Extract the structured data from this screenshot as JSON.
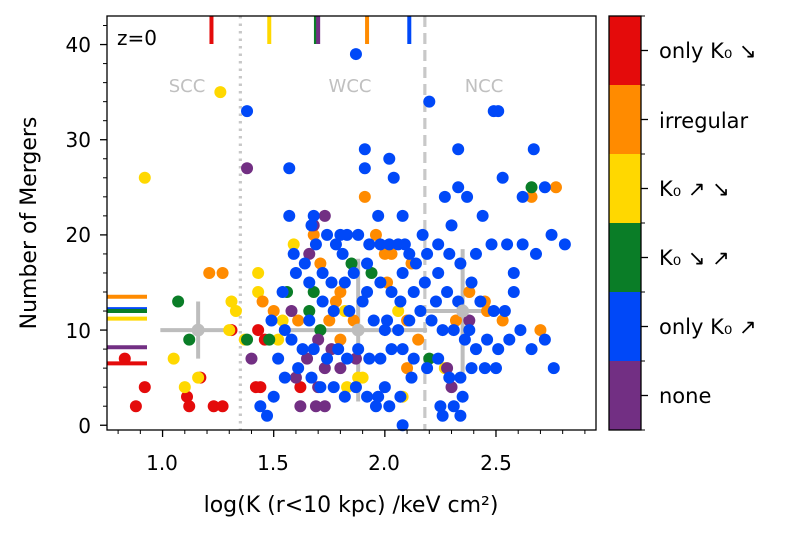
{
  "chart_data": {
    "type": "scatter",
    "title": "",
    "annotation": "z=0",
    "xlabel": "log(K (r<10 kpc) /keV cm²)",
    "ylabel": "Number of Mergers",
    "xlim": [
      0.75,
      2.95
    ],
    "ylim": [
      -0.5,
      43
    ],
    "xticks": [
      1.0,
      1.5,
      2.0,
      2.5
    ],
    "xtick_labels": [
      "1.0",
      "1.5",
      "2.0",
      "2.5"
    ],
    "yticks": [
      0,
      10,
      20,
      30,
      40
    ],
    "ytick_labels": [
      "0",
      "10",
      "20",
      "30",
      "40"
    ],
    "grid": false,
    "regions": [
      {
        "label": "SCC",
        "x": 1.17
      },
      {
        "label": "WCC",
        "x": 1.76
      },
      {
        "label": "NCC",
        "x": 2.4
      }
    ],
    "boundaries": [
      {
        "x": 1.35,
        "style": "dotted"
      },
      {
        "x": 2.18,
        "style": "dashed"
      }
    ],
    "categories": [
      {
        "key": "none",
        "label": "none",
        "color": "#722f83"
      },
      {
        "key": "onlyup",
        "label": "only K₀ ↗",
        "color": "#0048f8"
      },
      {
        "key": "downup",
        "label": "K₀ ↘ ↗",
        "color": "#0a7d27"
      },
      {
        "key": "updown",
        "label": "K₀ ↗ ↘",
        "color": "#ffd800"
      },
      {
        "key": "irregular",
        "label": "irregular",
        "color": "#ff8b00"
      },
      {
        "key": "onlydown",
        "label": "only K₀ ↘",
        "color": "#e40b0b"
      }
    ],
    "top_ticks": [
      {
        "x": 1.22,
        "category": "onlydown"
      },
      {
        "x": 1.48,
        "category": "updown"
      },
      {
        "x": 1.69,
        "category": "downup"
      },
      {
        "x": 1.7,
        "category": "none"
      },
      {
        "x": 1.92,
        "category": "irregular"
      },
      {
        "x": 2.11,
        "category": "onlyup"
      }
    ],
    "left_ticks": [
      {
        "y": 13.5,
        "category": "irregular"
      },
      {
        "y": 12.2,
        "category": "onlyup"
      },
      {
        "y": 12.0,
        "category": "downup"
      },
      {
        "y": 11.2,
        "category": "updown"
      },
      {
        "y": 8.2,
        "category": "none"
      },
      {
        "y": 6.5,
        "category": "onlydown"
      }
    ],
    "means": [
      {
        "x": 1.16,
        "y": 10,
        "xerr": 0.17,
        "yerr": 3
      },
      {
        "x": 1.88,
        "y": 10,
        "xerr": 0.31,
        "yerr": 7.5
      },
      {
        "x": 2.35,
        "y": 12,
        "xerr": 0.18,
        "yerr": 6.5
      }
    ],
    "series": [
      {
        "category": "onlydown",
        "points": [
          [
            0.83,
            7
          ],
          [
            0.88,
            2
          ],
          [
            0.92,
            4
          ],
          [
            1.11,
            3
          ],
          [
            1.12,
            2
          ],
          [
            1.17,
            5
          ],
          [
            1.23,
            2
          ],
          [
            1.27,
            2
          ],
          [
            1.31,
            10
          ],
          [
            1.42,
            4
          ],
          [
            1.44,
            4
          ],
          [
            1.46,
            9
          ],
          [
            1.62,
            4
          ],
          [
            1.43,
            10
          ]
        ]
      },
      {
        "category": "updown",
        "points": [
          [
            0.92,
            26
          ],
          [
            1.26,
            35
          ],
          [
            1.05,
            7
          ],
          [
            1.1,
            4
          ],
          [
            1.16,
            5
          ],
          [
            1.31,
            13
          ],
          [
            1.33,
            12
          ],
          [
            1.43,
            16
          ],
          [
            1.43,
            14
          ],
          [
            1.37,
            9
          ],
          [
            1.54,
            11
          ],
          [
            1.52,
            9
          ],
          [
            1.59,
            19
          ],
          [
            1.82,
            12
          ],
          [
            1.9,
            5
          ],
          [
            1.88,
            5
          ],
          [
            1.83,
            4
          ],
          [
            2.08,
            3
          ],
          [
            2.06,
            12
          ],
          [
            2.27,
            6
          ],
          [
            1.3,
            10
          ]
        ]
      },
      {
        "category": "irregular",
        "points": [
          [
            1.21,
            16
          ],
          [
            1.27,
            16
          ],
          [
            1.45,
            13
          ],
          [
            1.5,
            12
          ],
          [
            1.61,
            11
          ],
          [
            1.68,
            20
          ],
          [
            1.71,
            17
          ],
          [
            1.78,
            13
          ],
          [
            1.8,
            14
          ],
          [
            1.91,
            24
          ],
          [
            1.96,
            20
          ],
          [
            2.0,
            18
          ],
          [
            2.03,
            18
          ],
          [
            2.12,
            17
          ],
          [
            2.15,
            9
          ],
          [
            2.32,
            11
          ],
          [
            2.38,
            14
          ],
          [
            2.45,
            13
          ],
          [
            2.53,
            11
          ],
          [
            2.66,
            24
          ],
          [
            2.77,
            25
          ],
          [
            2.7,
            10
          ],
          [
            1.86,
            11
          ],
          [
            2.01,
            15
          ],
          [
            1.8,
            9
          ],
          [
            1.75,
            11
          ],
          [
            2.1,
            11
          ],
          [
            2.46,
            12
          ],
          [
            2.1,
            6
          ]
        ]
      },
      {
        "category": "downup",
        "points": [
          [
            1.07,
            13
          ],
          [
            1.12,
            9
          ],
          [
            1.38,
            9
          ],
          [
            1.48,
            9
          ],
          [
            1.56,
            14
          ],
          [
            1.66,
            12
          ],
          [
            1.68,
            14
          ],
          [
            2.66,
            25
          ],
          [
            1.94,
            16
          ],
          [
            2.2,
            7
          ],
          [
            1.71,
            10
          ],
          [
            1.85,
            17
          ]
        ]
      },
      {
        "category": "none",
        "points": [
          [
            1.38,
            27
          ],
          [
            1.68,
            21
          ],
          [
            1.73,
            22
          ],
          [
            1.4,
            7
          ],
          [
            1.66,
            18
          ],
          [
            1.58,
            12
          ],
          [
            1.65,
            7
          ],
          [
            1.7,
            9
          ],
          [
            1.73,
            6
          ],
          [
            1.6,
            5
          ],
          [
            1.62,
            2
          ],
          [
            1.69,
            2
          ],
          [
            1.73,
            2
          ],
          [
            1.87,
            7
          ],
          [
            1.76,
            8
          ],
          [
            2.3,
            4
          ],
          [
            2.28,
            6
          ],
          [
            2.38,
            11
          ],
          [
            1.8,
            6
          ],
          [
            1.7,
            4
          ]
        ]
      },
      {
        "category": "onlyup",
        "points": [
          [
            1.87,
            39
          ],
          [
            1.38,
            33
          ],
          [
            2.2,
            34
          ],
          [
            2.49,
            33
          ],
          [
            2.51,
            33
          ],
          [
            2.67,
            29
          ],
          [
            2.33,
            29
          ],
          [
            1.91,
            29
          ],
          [
            2.02,
            28
          ],
          [
            1.91,
            27
          ],
          [
            1.57,
            27
          ],
          [
            2.04,
            26
          ],
          [
            2.53,
            26
          ],
          [
            2.33,
            25
          ],
          [
            2.27,
            24
          ],
          [
            2.37,
            24
          ],
          [
            2.62,
            24
          ],
          [
            2.72,
            25
          ],
          [
            1.57,
            22
          ],
          [
            1.68,
            22
          ],
          [
            1.67,
            21
          ],
          [
            1.74,
            20
          ],
          [
            1.69,
            19
          ],
          [
            1.78,
            19
          ],
          [
            1.8,
            20
          ],
          [
            1.83,
            20
          ],
          [
            1.88,
            20
          ],
          [
            1.93,
            19
          ],
          [
            1.98,
            19
          ],
          [
            2.02,
            19
          ],
          [
            2.06,
            19
          ],
          [
            2.09,
            19
          ],
          [
            2.11,
            18
          ],
          [
            2.14,
            17
          ],
          [
            2.19,
            18
          ],
          [
            2.24,
            19
          ],
          [
            2.29,
            18
          ],
          [
            2.34,
            17
          ],
          [
            2.41,
            18
          ],
          [
            2.48,
            19
          ],
          [
            2.55,
            19
          ],
          [
            2.62,
            19
          ],
          [
            2.68,
            18
          ],
          [
            2.75,
            20
          ],
          [
            2.81,
            19
          ],
          [
            1.59,
            18
          ],
          [
            1.64,
            17
          ],
          [
            1.72,
            16
          ],
          [
            1.76,
            15
          ],
          [
            1.82,
            15
          ],
          [
            1.86,
            16
          ],
          [
            1.92,
            14
          ],
          [
            1.98,
            15
          ],
          [
            2.03,
            14
          ],
          [
            2.07,
            13
          ],
          [
            2.13,
            14
          ],
          [
            2.18,
            15
          ],
          [
            2.23,
            13
          ],
          [
            2.28,
            14
          ],
          [
            2.33,
            13
          ],
          [
            2.39,
            15
          ],
          [
            2.43,
            13
          ],
          [
            2.49,
            12
          ],
          [
            2.54,
            12
          ],
          [
            2.58,
            14
          ],
          [
            1.66,
            15
          ],
          [
            1.72,
            13
          ],
          [
            1.77,
            12
          ],
          [
            1.84,
            12
          ],
          [
            1.9,
            13
          ],
          [
            1.95,
            11
          ],
          [
            2.01,
            11
          ],
          [
            2.06,
            10
          ],
          [
            2.11,
            11
          ],
          [
            2.16,
            12
          ],
          [
            2.21,
            11
          ],
          [
            2.26,
            10
          ],
          [
            2.31,
            10
          ],
          [
            2.36,
            9
          ],
          [
            2.41,
            8
          ],
          [
            2.46,
            9
          ],
          [
            2.51,
            8
          ],
          [
            2.56,
            9
          ],
          [
            2.61,
            10
          ],
          [
            2.66,
            8
          ],
          [
            2.72,
            9
          ],
          [
            2.76,
            6
          ],
          [
            1.49,
            11
          ],
          [
            1.55,
            10
          ],
          [
            1.58,
            9
          ],
          [
            1.63,
            8
          ],
          [
            1.68,
            8
          ],
          [
            1.74,
            7
          ],
          [
            1.79,
            8
          ],
          [
            1.83,
            7
          ],
          [
            1.88,
            8
          ],
          [
            1.93,
            7
          ],
          [
            1.98,
            7
          ],
          [
            2.03,
            8
          ],
          [
            2.08,
            8
          ],
          [
            2.13,
            7
          ],
          [
            2.19,
            6
          ],
          [
            2.24,
            7
          ],
          [
            2.29,
            5
          ],
          [
            2.34,
            5
          ],
          [
            2.39,
            6
          ],
          [
            2.45,
            6
          ],
          [
            2.5,
            6
          ],
          [
            1.52,
            7
          ],
          [
            1.55,
            5
          ],
          [
            1.61,
            6
          ],
          [
            1.67,
            5
          ],
          [
            1.71,
            4
          ],
          [
            1.77,
            4
          ],
          [
            1.82,
            3
          ],
          [
            1.87,
            4
          ],
          [
            1.92,
            3
          ],
          [
            1.97,
            3
          ],
          [
            2.02,
            2
          ],
          [
            2.07,
            3
          ],
          [
            2.12,
            5
          ],
          [
            2.25,
            2
          ],
          [
            2.31,
            2
          ],
          [
            2.35,
            3
          ],
          [
            1.5,
            3
          ],
          [
            1.44,
            2
          ],
          [
            1.47,
            1
          ],
          [
            2.08,
            0
          ],
          [
            2.26,
            1
          ],
          [
            2.34,
            1
          ],
          [
            1.96,
            2
          ],
          [
            2.0,
            4
          ],
          [
            1.66,
            11
          ],
          [
            2.0,
            10
          ],
          [
            2.38,
            10
          ],
          [
            1.54,
            14
          ],
          [
            1.6,
            16
          ],
          [
            1.97,
            22
          ],
          [
            2.08,
            22
          ],
          [
            2.44,
            22
          ],
          [
            2.58,
            16
          ],
          [
            2.24,
            16
          ],
          [
            1.81,
            18
          ],
          [
            2.3,
            21
          ],
          [
            2.17,
            20
          ],
          [
            2.08,
            16
          ],
          [
            1.92,
            17
          ]
        ]
      }
    ]
  }
}
